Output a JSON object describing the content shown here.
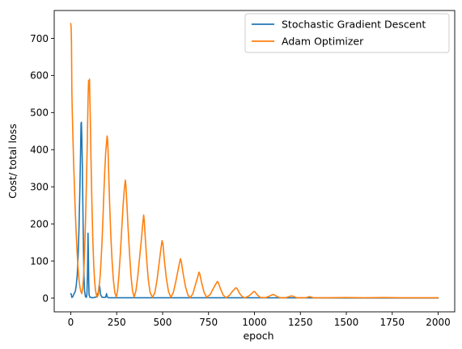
{
  "chart_data": {
    "type": "line",
    "title": "",
    "xlabel": "epoch",
    "ylabel": "Cost/ total loss",
    "xlim": [
      -90,
      2090
    ],
    "ylim": [
      -37,
      775
    ],
    "xticks": [
      0,
      250,
      500,
      750,
      1000,
      1250,
      1500,
      1750,
      2000
    ],
    "yticks": [
      0,
      100,
      200,
      300,
      400,
      500,
      600,
      700
    ],
    "grid": false,
    "legend_position": "top-right",
    "series": [
      {
        "name": "Stochastic Gradient Descent",
        "color": "#1f77b4",
        "points": [
          [
            0,
            12
          ],
          [
            3,
            10
          ],
          [
            6,
            2
          ],
          [
            10,
            3
          ],
          [
            15,
            8
          ],
          [
            20,
            14
          ],
          [
            25,
            18
          ],
          [
            30,
            35
          ],
          [
            35,
            60
          ],
          [
            40,
            110
          ],
          [
            45,
            190
          ],
          [
            50,
            300
          ],
          [
            53,
            380
          ],
          [
            56,
            470
          ],
          [
            58,
            474
          ],
          [
            60,
            440
          ],
          [
            63,
            360
          ],
          [
            66,
            250
          ],
          [
            69,
            140
          ],
          [
            72,
            60
          ],
          [
            75,
            20
          ],
          [
            80,
            4
          ],
          [
            85,
            2
          ],
          [
            88,
            10
          ],
          [
            91,
            60
          ],
          [
            94,
            175
          ],
          [
            96,
            120
          ],
          [
            98,
            40
          ],
          [
            100,
            8
          ],
          [
            105,
            2
          ],
          [
            120,
            1
          ],
          [
            140,
            3
          ],
          [
            150,
            15
          ],
          [
            155,
            35
          ],
          [
            158,
            30
          ],
          [
            162,
            10
          ],
          [
            170,
            2
          ],
          [
            190,
            2
          ],
          [
            195,
            12
          ],
          [
            198,
            4
          ],
          [
            205,
            1
          ],
          [
            300,
            1
          ],
          [
            400,
            1
          ],
          [
            500,
            1
          ],
          [
            750,
            1
          ],
          [
            1000,
            1
          ],
          [
            1250,
            0.8
          ],
          [
            1500,
            0.5
          ],
          [
            1750,
            0.5
          ],
          [
            2000,
            0.5
          ]
        ]
      },
      {
        "name": "Adam Optimizer",
        "color": "#ff7f0e",
        "points": [
          [
            0,
            740
          ],
          [
            2,
            730
          ],
          [
            4,
            690
          ],
          [
            6,
            560
          ],
          [
            8,
            510
          ],
          [
            12,
            430
          ],
          [
            16,
            360
          ],
          [
            20,
            300
          ],
          [
            25,
            230
          ],
          [
            30,
            170
          ],
          [
            35,
            120
          ],
          [
            40,
            80
          ],
          [
            45,
            50
          ],
          [
            50,
            30
          ],
          [
            55,
            18
          ],
          [
            60,
            12
          ],
          [
            65,
            25
          ],
          [
            70,
            60
          ],
          [
            75,
            120
          ],
          [
            80,
            200
          ],
          [
            85,
            300
          ],
          [
            90,
            420
          ],
          [
            94,
            530
          ],
          [
            97,
            586
          ],
          [
            100,
            560
          ],
          [
            102,
            590
          ],
          [
            104,
            540
          ],
          [
            107,
            470
          ],
          [
            110,
            380
          ],
          [
            115,
            260
          ],
          [
            120,
            160
          ],
          [
            125,
            90
          ],
          [
            130,
            45
          ],
          [
            135,
            20
          ],
          [
            140,
            8
          ],
          [
            145,
            3
          ],
          [
            150,
            10
          ],
          [
            155,
            30
          ],
          [
            160,
            60
          ],
          [
            165,
            100
          ],
          [
            170,
            150
          ],
          [
            175,
            210
          ],
          [
            180,
            280
          ],
          [
            185,
            340
          ],
          [
            190,
            390
          ],
          [
            195,
            420
          ],
          [
            198,
            437
          ],
          [
            200,
            430
          ],
          [
            203,
            400
          ],
          [
            207,
            330
          ],
          [
            212,
            250
          ],
          [
            218,
            170
          ],
          [
            225,
            100
          ],
          [
            232,
            50
          ],
          [
            240,
            15
          ],
          [
            248,
            3
          ],
          [
            255,
            20
          ],
          [
            262,
            60
          ],
          [
            270,
            120
          ],
          [
            278,
            190
          ],
          [
            285,
            250
          ],
          [
            292,
            295
          ],
          [
            297,
            318
          ],
          [
            300,
            305
          ],
          [
            305,
            260
          ],
          [
            312,
            190
          ],
          [
            320,
            120
          ],
          [
            328,
            60
          ],
          [
            336,
            20
          ],
          [
            345,
            3
          ],
          [
            355,
            20
          ],
          [
            365,
            60
          ],
          [
            375,
            110
          ],
          [
            385,
            160
          ],
          [
            392,
            200
          ],
          [
            397,
            224
          ],
          [
            400,
            210
          ],
          [
            406,
            160
          ],
          [
            414,
            100
          ],
          [
            422,
            50
          ],
          [
            432,
            15
          ],
          [
            445,
            2
          ],
          [
            458,
            15
          ],
          [
            470,
            50
          ],
          [
            480,
            90
          ],
          [
            490,
            130
          ],
          [
            497,
            155
          ],
          [
            502,
            145
          ],
          [
            510,
            100
          ],
          [
            520,
            55
          ],
          [
            532,
            18
          ],
          [
            545,
            2
          ],
          [
            558,
            15
          ],
          [
            570,
            40
          ],
          [
            580,
            65
          ],
          [
            590,
            90
          ],
          [
            597,
            106
          ],
          [
            602,
            98
          ],
          [
            612,
            65
          ],
          [
            625,
            30
          ],
          [
            638,
            8
          ],
          [
            650,
            1
          ],
          [
            665,
            12
          ],
          [
            678,
            35
          ],
          [
            690,
            55
          ],
          [
            698,
            70
          ],
          [
            703,
            64
          ],
          [
            713,
            40
          ],
          [
            726,
            15
          ],
          [
            740,
            2
          ],
          [
            760,
            10
          ],
          [
            775,
            25
          ],
          [
            790,
            38
          ],
          [
            798,
            45
          ],
          [
            803,
            42
          ],
          [
            815,
            25
          ],
          [
            830,
            8
          ],
          [
            845,
            1
          ],
          [
            865,
            8
          ],
          [
            880,
            18
          ],
          [
            895,
            26
          ],
          [
            900,
            28
          ],
          [
            906,
            25
          ],
          [
            920,
            12
          ],
          [
            935,
            3
          ],
          [
            950,
            1
          ],
          [
            970,
            6
          ],
          [
            985,
            12
          ],
          [
            997,
            18
          ],
          [
            1002,
            17
          ],
          [
            1015,
            9
          ],
          [
            1030,
            2
          ],
          [
            1060,
            1
          ],
          [
            1080,
            5
          ],
          [
            1100,
            10
          ],
          [
            1106,
            9
          ],
          [
            1120,
            5
          ],
          [
            1140,
            1
          ],
          [
            1170,
            1
          ],
          [
            1190,
            4
          ],
          [
            1200,
            6
          ],
          [
            1210,
            5
          ],
          [
            1230,
            1
          ],
          [
            1280,
            1
          ],
          [
            1300,
            4
          ],
          [
            1320,
            1
          ],
          [
            1400,
            1
          ],
          [
            1500,
            1.5
          ],
          [
            1600,
            1
          ],
          [
            1700,
            1.5
          ],
          [
            1800,
            1
          ],
          [
            1900,
            1
          ],
          [
            2000,
            1
          ]
        ]
      }
    ]
  }
}
